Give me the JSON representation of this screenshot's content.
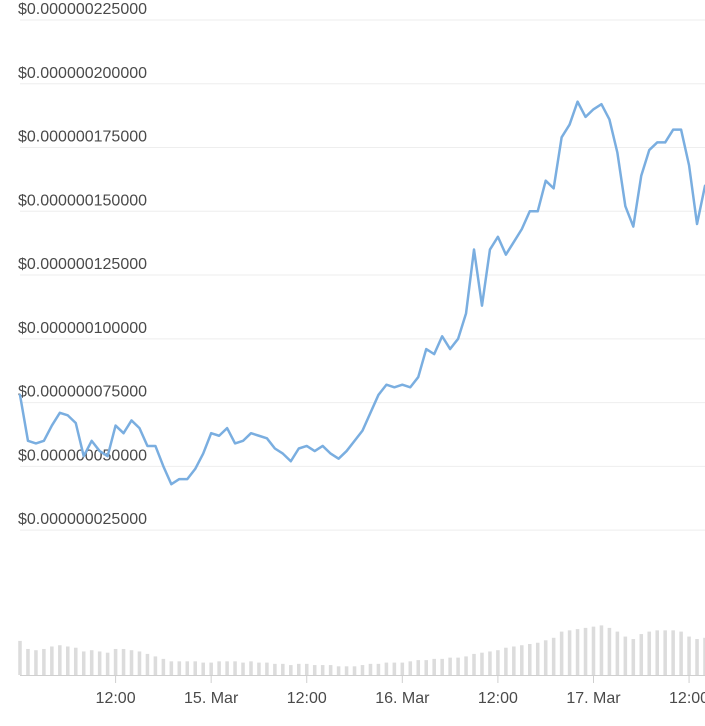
{
  "chart_data": {
    "type": "line",
    "title": "",
    "xlabel": "",
    "ylabel": "",
    "line_color": "#7aaee0",
    "volume_color": "#dcdcdc",
    "grid_color": "#eeeeee",
    "grid": true,
    "ylim": [
      1.25e-08,
      2.25e-07
    ],
    "y_ticks": [
      {
        "value": 2.25e-07,
        "label": "$0.000000225000"
      },
      {
        "value": 2e-07,
        "label": "$0.000000200000"
      },
      {
        "value": 1.75e-07,
        "label": "$0.000000175000"
      },
      {
        "value": 1.5e-07,
        "label": "$0.000000150000"
      },
      {
        "value": 1.25e-07,
        "label": "$0.000000125000"
      },
      {
        "value": 1e-07,
        "label": "$0.000000100000"
      },
      {
        "value": 7.5e-08,
        "label": "$0.000000075000"
      },
      {
        "value": 5e-08,
        "label": "$0.000000050000"
      },
      {
        "value": 2.5e-08,
        "label": "$0.000000025000"
      }
    ],
    "x_ticks": [
      {
        "index": 12,
        "label": "12:00"
      },
      {
        "index": 24,
        "label": "15. Mar"
      },
      {
        "index": 36,
        "label": "12:00"
      },
      {
        "index": 48,
        "label": "16. Mar"
      },
      {
        "index": 60,
        "label": "12:00"
      },
      {
        "index": 72,
        "label": "17. Mar"
      },
      {
        "index": 84,
        "label": "12:00"
      }
    ],
    "series": [
      {
        "values": [
          7.8e-08,
          6e-08,
          5.9e-08,
          6e-08,
          6.6e-08,
          7.1e-08,
          7e-08,
          6.7e-08,
          5.4e-08,
          6e-08,
          5.6e-08,
          5.4e-08,
          6.6e-08,
          6.3e-08,
          6.8e-08,
          6.5e-08,
          5.8e-08,
          5.8e-08,
          5e-08,
          4.3e-08,
          4.5e-08,
          4.5e-08,
          4.9e-08,
          5.5e-08,
          6.3e-08,
          6.2e-08,
          6.5e-08,
          5.9e-08,
          6e-08,
          6.3e-08,
          6.2e-08,
          6.1e-08,
          5.7e-08,
          5.5e-08,
          5.2e-08,
          5.7e-08,
          5.8e-08,
          5.6e-08,
          5.8e-08,
          5.5e-08,
          5.3e-08,
          5.6e-08,
          6e-08,
          6.4e-08,
          7.1e-08,
          7.8e-08,
          8.2e-08,
          8.1e-08,
          8.2e-08,
          8.1e-08,
          8.5e-08,
          9.6e-08,
          9.4e-08,
          1.01e-07,
          9.6e-08,
          1e-07,
          1.1e-07,
          1.35e-07,
          1.13e-07,
          1.35e-07,
          1.4e-07,
          1.33e-07,
          1.38e-07,
          1.43e-07,
          1.5e-07,
          1.5e-07,
          1.62e-07,
          1.59e-07,
          1.79e-07,
          1.84e-07,
          1.93e-07,
          1.87e-07,
          1.9e-07,
          1.92e-07,
          1.86e-07,
          1.73e-07,
          1.52e-07,
          1.44e-07,
          1.64e-07,
          1.74e-07,
          1.77e-07,
          1.77e-07,
          1.82e-07,
          1.82e-07,
          1.68e-07,
          1.45e-07,
          1.6e-07
        ],
        "volume": [
          0.55,
          0.42,
          0.4,
          0.42,
          0.46,
          0.48,
          0.46,
          0.44,
          0.38,
          0.4,
          0.38,
          0.36,
          0.42,
          0.42,
          0.4,
          0.38,
          0.34,
          0.3,
          0.26,
          0.22,
          0.22,
          0.22,
          0.22,
          0.2,
          0.2,
          0.22,
          0.22,
          0.22,
          0.2,
          0.22,
          0.2,
          0.2,
          0.18,
          0.18,
          0.16,
          0.18,
          0.18,
          0.16,
          0.16,
          0.16,
          0.14,
          0.14,
          0.14,
          0.16,
          0.18,
          0.18,
          0.2,
          0.2,
          0.2,
          0.22,
          0.24,
          0.24,
          0.26,
          0.26,
          0.28,
          0.28,
          0.3,
          0.34,
          0.36,
          0.38,
          0.4,
          0.44,
          0.46,
          0.48,
          0.5,
          0.52,
          0.56,
          0.6,
          0.7,
          0.72,
          0.74,
          0.76,
          0.78,
          0.8,
          0.76,
          0.7,
          0.62,
          0.58,
          0.66,
          0.7,
          0.72,
          0.72,
          0.72,
          0.7,
          0.62,
          0.58,
          0.6
        ]
      }
    ]
  }
}
